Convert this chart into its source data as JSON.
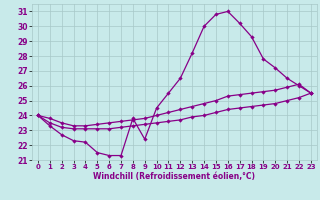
{
  "xlabel": "Windchill (Refroidissement éolien,°C)",
  "bg_color": "#c8eaea",
  "grid_color": "#a8c8c8",
  "line_color": "#880088",
  "xlim": [
    -0.5,
    23.5
  ],
  "ylim": [
    21,
    31.5
  ],
  "xticks": [
    0,
    1,
    2,
    3,
    4,
    5,
    6,
    7,
    8,
    9,
    10,
    11,
    12,
    13,
    14,
    15,
    16,
    17,
    18,
    19,
    20,
    21,
    22,
    23
  ],
  "yticks": [
    21,
    22,
    23,
    24,
    25,
    26,
    27,
    28,
    29,
    30,
    31
  ],
  "main_x": [
    0,
    1,
    2,
    3,
    4,
    5,
    6,
    7,
    8,
    9,
    10,
    11,
    12,
    13,
    14,
    15,
    16,
    17,
    18,
    19,
    20,
    21,
    22,
    23
  ],
  "main_y": [
    24.0,
    23.3,
    22.7,
    22.3,
    22.2,
    21.5,
    21.3,
    21.3,
    23.8,
    22.4,
    24.5,
    25.5,
    26.5,
    28.2,
    30.0,
    30.8,
    31.0,
    30.2,
    29.3,
    27.8,
    27.2,
    26.5,
    26.0,
    25.5
  ],
  "line1_x": [
    0,
    1,
    2,
    3,
    4,
    5,
    6,
    7,
    8,
    9,
    10,
    11,
    12,
    13,
    14,
    15,
    16,
    17,
    18,
    19,
    20,
    21,
    22,
    23
  ],
  "line1_y": [
    24.0,
    23.5,
    23.2,
    23.1,
    23.1,
    23.1,
    23.1,
    23.2,
    23.3,
    23.4,
    23.5,
    23.6,
    23.7,
    23.9,
    24.0,
    24.2,
    24.4,
    24.5,
    24.6,
    24.7,
    24.8,
    25.0,
    25.2,
    25.5
  ],
  "line2_x": [
    0,
    1,
    2,
    3,
    4,
    5,
    6,
    7,
    8,
    9,
    10,
    11,
    12,
    13,
    14,
    15,
    16,
    17,
    18,
    19,
    20,
    21,
    22,
    23
  ],
  "line2_y": [
    24.0,
    23.8,
    23.5,
    23.3,
    23.3,
    23.4,
    23.5,
    23.6,
    23.7,
    23.8,
    24.0,
    24.2,
    24.4,
    24.6,
    24.8,
    25.0,
    25.3,
    25.4,
    25.5,
    25.6,
    25.7,
    25.9,
    26.1,
    25.5
  ]
}
